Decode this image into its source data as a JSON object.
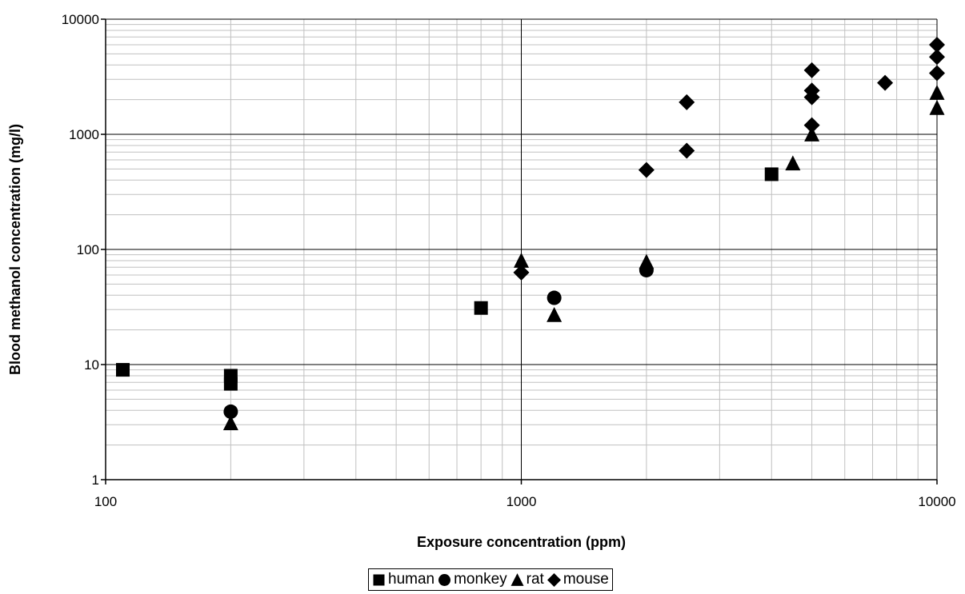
{
  "chart_data": {
    "type": "scatter",
    "xlabel": "Exposure concentration (ppm)",
    "ylabel": "Blood methanol concentration (mg/l)",
    "xscale": "log",
    "yscale": "log",
    "xlim": [
      100,
      10000
    ],
    "ylim": [
      1,
      10000
    ],
    "x_ticks": [
      "100",
      "1000",
      "10000"
    ],
    "y_ticks": [
      "1",
      "10",
      "100",
      "1000",
      "10000"
    ],
    "grid": true,
    "legend_position": "bottom",
    "series": [
      {
        "name": "human",
        "marker": "square",
        "color": "#000000",
        "points": [
          [
            110,
            9
          ],
          [
            200,
            8
          ],
          [
            200,
            6.8
          ],
          [
            800,
            31
          ],
          [
            4000,
            450
          ]
        ]
      },
      {
        "name": "monkey",
        "marker": "circle",
        "color": "#000000",
        "points": [
          [
            200,
            3.9
          ],
          [
            1200,
            38
          ],
          [
            2000,
            66
          ]
        ]
      },
      {
        "name": "rat",
        "marker": "triangle",
        "color": "#000000",
        "points": [
          [
            200,
            3.1
          ],
          [
            1000,
            80
          ],
          [
            1200,
            27
          ],
          [
            2000,
            78
          ],
          [
            4500,
            560
          ],
          [
            5000,
            1000
          ],
          [
            10000,
            1700
          ],
          [
            10000,
            2300
          ]
        ]
      },
      {
        "name": "mouse",
        "marker": "diamond",
        "color": "#000000",
        "points": [
          [
            1000,
            63
          ],
          [
            2000,
            490
          ],
          [
            2500,
            720
          ],
          [
            2500,
            1900
          ],
          [
            5000,
            3600
          ],
          [
            5000,
            2400
          ],
          [
            5000,
            2100
          ],
          [
            5000,
            1200
          ],
          [
            7500,
            2800
          ],
          [
            10000,
            6000
          ],
          [
            10000,
            4700
          ],
          [
            10000,
            3400
          ]
        ]
      }
    ]
  }
}
